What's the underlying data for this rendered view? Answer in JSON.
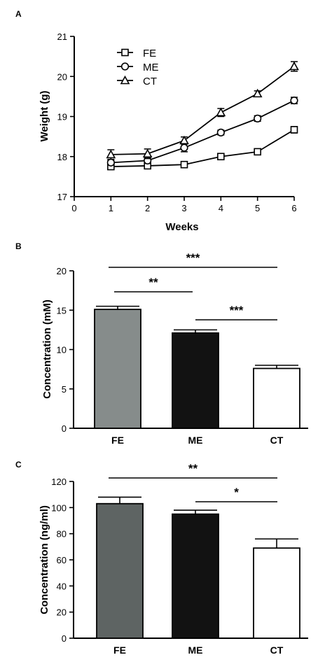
{
  "chart_data": [
    {
      "panel": "A",
      "type": "line",
      "xlabel": "Weeks",
      "ylabel": "Weight (g)",
      "xlim": [
        0,
        6
      ],
      "ylim": [
        17,
        21
      ],
      "x_ticks": [
        "0",
        "1",
        "2",
        "3",
        "4",
        "5",
        "6"
      ],
      "y_ticks": [
        "17",
        "18",
        "19",
        "20",
        "21"
      ],
      "x": [
        1,
        2,
        3,
        4,
        5,
        6
      ],
      "legend_position": "top-left",
      "series": [
        {
          "name": "FE",
          "marker": "square",
          "values": [
            17.75,
            17.77,
            17.8,
            18.0,
            18.12,
            18.67
          ],
          "errors": [
            0.06,
            0.06,
            0.07,
            0.06,
            0.06,
            0.08
          ]
        },
        {
          "name": "ME",
          "marker": "circle",
          "values": [
            17.85,
            17.9,
            18.22,
            18.6,
            18.95,
            19.4
          ],
          "errors": [
            0.06,
            0.07,
            0.1,
            0.06,
            0.07,
            0.08
          ]
        },
        {
          "name": "CT",
          "marker": "triangle",
          "values": [
            18.05,
            18.07,
            18.4,
            19.1,
            19.57,
            20.25
          ],
          "errors": [
            0.12,
            0.12,
            0.09,
            0.1,
            0.07,
            0.12
          ]
        }
      ]
    },
    {
      "panel": "B",
      "type": "bar",
      "xlabel": "",
      "ylabel": "Concentration (mM)",
      "ylim": [
        0,
        20
      ],
      "y_ticks": [
        "0",
        "5",
        "10",
        "15",
        "20"
      ],
      "categories": [
        "FE",
        "ME",
        "CT"
      ],
      "values": [
        15.1,
        12.1,
        7.6
      ],
      "errors": [
        0.4,
        0.4,
        0.4
      ],
      "colors": [
        "#868c8b",
        "#121212",
        "#ffffff"
      ],
      "significance": [
        {
          "from": "FE",
          "to": "CT",
          "label": "***"
        },
        {
          "from": "FE",
          "to": "ME",
          "label": "**"
        },
        {
          "from": "ME",
          "to": "CT",
          "label": "***"
        }
      ]
    },
    {
      "panel": "C",
      "type": "bar",
      "xlabel": "",
      "ylabel": "Concentration (ng/ml)",
      "ylim": [
        0,
        120
      ],
      "y_ticks": [
        "0",
        "20",
        "40",
        "60",
        "80",
        "100",
        "120"
      ],
      "categories": [
        "FE",
        "ME",
        "CT"
      ],
      "values": [
        103,
        95,
        69
      ],
      "errors": [
        5,
        3,
        7
      ],
      "colors": [
        "#5e6463",
        "#121212",
        "#ffffff"
      ],
      "significance": [
        {
          "from": "FE",
          "to": "CT",
          "label": "**"
        },
        {
          "from": "ME",
          "to": "CT",
          "label": "*"
        }
      ]
    }
  ]
}
